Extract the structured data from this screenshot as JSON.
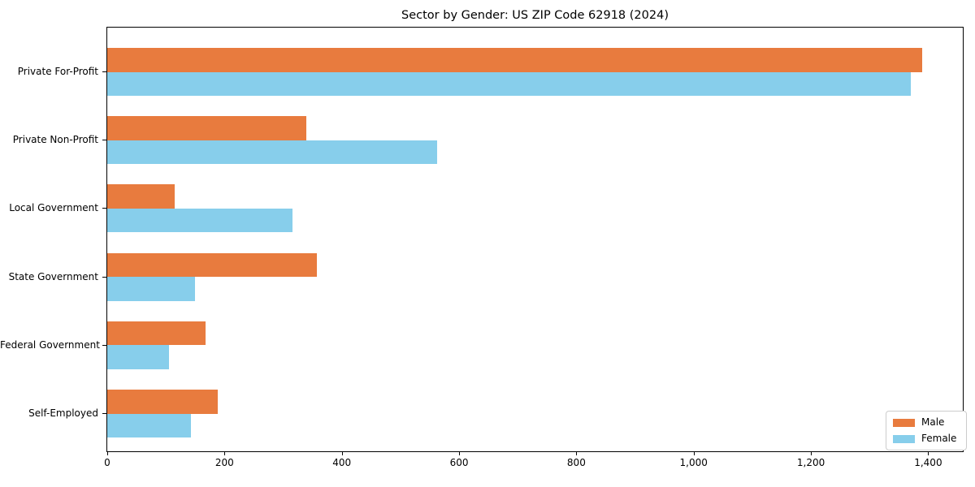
{
  "title": "Sector by Gender: US ZIP Code 62918 (2024)",
  "chart_data": {
    "type": "bar",
    "orientation": "horizontal",
    "title": "Sector by Gender: US ZIP Code 62918 (2024)",
    "xlabel": "",
    "ylabel": "",
    "categories": [
      "Private For-Profit",
      "Private Non-Profit",
      "Local Government",
      "State Government",
      "Federal Government",
      "Self-Employed"
    ],
    "series": [
      {
        "name": "Male",
        "color": "#E87B3E",
        "values": [
          1390,
          340,
          115,
          358,
          168,
          189
        ]
      },
      {
        "name": "Female",
        "color": "#87CEEB",
        "values": [
          1370,
          562,
          316,
          150,
          105,
          143
        ]
      }
    ],
    "xlim": [
      0,
      1459
    ],
    "xticks": [
      0,
      200,
      400,
      600,
      800,
      1000,
      1200,
      1400
    ],
    "xtick_labels": [
      "0",
      "200",
      "400",
      "600",
      "800",
      "1,000",
      "1,200",
      "1,400"
    ],
    "grid": false,
    "legend_position": "lower right"
  }
}
